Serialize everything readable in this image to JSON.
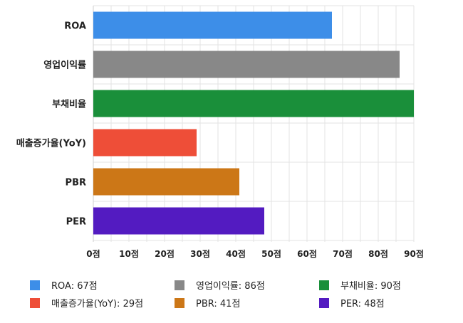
{
  "chart_data": {
    "type": "bar",
    "orientation": "horizontal",
    "categories": [
      "ROA",
      "영업이익률",
      "부채비율",
      "매출증가율(YoY)",
      "PBR",
      "PER"
    ],
    "values": [
      67,
      86,
      90,
      29,
      41,
      48
    ],
    "colors": [
      "#3d8ee8",
      "#888888",
      "#1a8f3a",
      "#ee4e38",
      "#cc7717",
      "#531bc1"
    ],
    "xlim": [
      0,
      90
    ],
    "ticks": [
      0,
      10,
      20,
      30,
      40,
      50,
      60,
      70,
      80,
      90
    ],
    "tick_labels": [
      "0점",
      "10점",
      "20점",
      "30점",
      "40점",
      "50점",
      "60점",
      "70점",
      "80점",
      "90점"
    ],
    "grid": true,
    "legend_position": "bottom",
    "legend": [
      "ROA: 67점",
      "영업이익률: 86점",
      "부채비율: 90점",
      "매출증가율(YoY): 29점",
      "PBR: 41점",
      "PER: 48점"
    ]
  }
}
